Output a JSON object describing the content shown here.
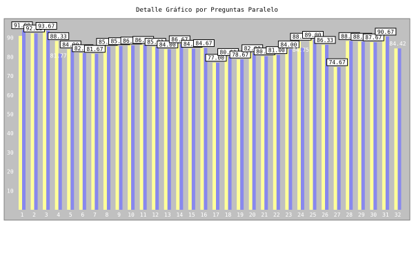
{
  "chart_data": {
    "type": "bar",
    "title": "Detalle Gráfico por Preguntas Paralelo",
    "xlabel": "",
    "ylabel": "",
    "ylim": [
      0,
      100
    ],
    "yticks": [
      10,
      20,
      30,
      40,
      50,
      60,
      70,
      80,
      90
    ],
    "grid": false,
    "legend": "none",
    "categories": [
      "1",
      "2",
      "3",
      "4",
      "5",
      "6",
      "7",
      "8",
      "9",
      "10",
      "11",
      "12",
      "13",
      "14",
      "15",
      "16",
      "17",
      "18",
      "19",
      "20",
      "21",
      "22",
      "23",
      "24",
      "25",
      "26",
      "27",
      "28",
      "29",
      "30",
      "31",
      "32"
    ],
    "series": [
      {
        "color": "#ffff99",
        "values": [
          91.0,
          92.33,
          93.67,
          88.33,
          84.0,
          82.0,
          81.67,
          85.33,
          85.67,
          86.0,
          86.33,
          85.33,
          84.0,
          86.67,
          84.33,
          84.67,
          77.0,
          80.0,
          78.67,
          82.0,
          80.33,
          81.0,
          84.0,
          88.0,
          89.0,
          86.33,
          74.67,
          88.33,
          88.0,
          87.67,
          90.67,
          84.42
        ]
      },
      {
        "color": "#8888ee",
        "values": [
          94.0,
          92.33,
          93.67,
          81.77,
          84.0,
          82.0,
          81.67,
          85.33,
          85.67,
          86.0,
          86.33,
          85.33,
          84.0,
          86.67,
          84.33,
          84.67,
          77.0,
          80.0,
          78.67,
          82.0,
          80.33,
          81.0,
          84.0,
          84.75,
          89.0,
          86.33,
          74.67,
          88.33,
          88.0,
          87.67,
          90.67,
          84.42
        ]
      }
    ],
    "data_labels": [
      "91.00",
      "92.33",
      "93.67",
      "88.33",
      "84.00",
      "82.00",
      "81.67",
      "85.33",
      "85.67",
      "86.00",
      "86.33",
      "85.33",
      "84.00",
      "86.67",
      "84.33",
      "84.67",
      "77.00",
      "80.00",
      "78.67",
      "82.00",
      "80.33",
      "81.00",
      "84.00",
      "88.00",
      "89.00",
      "86.33",
      "74.67",
      "88.33",
      "88.00",
      "87.67",
      "90.67",
      "84.42"
    ],
    "secondary_labels": [
      "",
      "",
      "",
      "81.77",
      "",
      "",
      "",
      "",
      "",
      "",
      "",
      "",
      "",
      "",
      "",
      "",
      "",
      "",
      "",
      "",
      "",
      "",
      "",
      "84.75",
      "",
      "",
      "",
      "",
      "",
      "",
      "",
      ""
    ],
    "boxed_labels": [
      true,
      true,
      true,
      true,
      true,
      true,
      true,
      true,
      true,
      true,
      true,
      true,
      true,
      true,
      true,
      true,
      true,
      true,
      true,
      true,
      true,
      true,
      true,
      true,
      true,
      true,
      true,
      true,
      true,
      true,
      true,
      false
    ],
    "colors": {
      "plot_bg": "#c0c0c0",
      "frame": "#808080"
    }
  }
}
